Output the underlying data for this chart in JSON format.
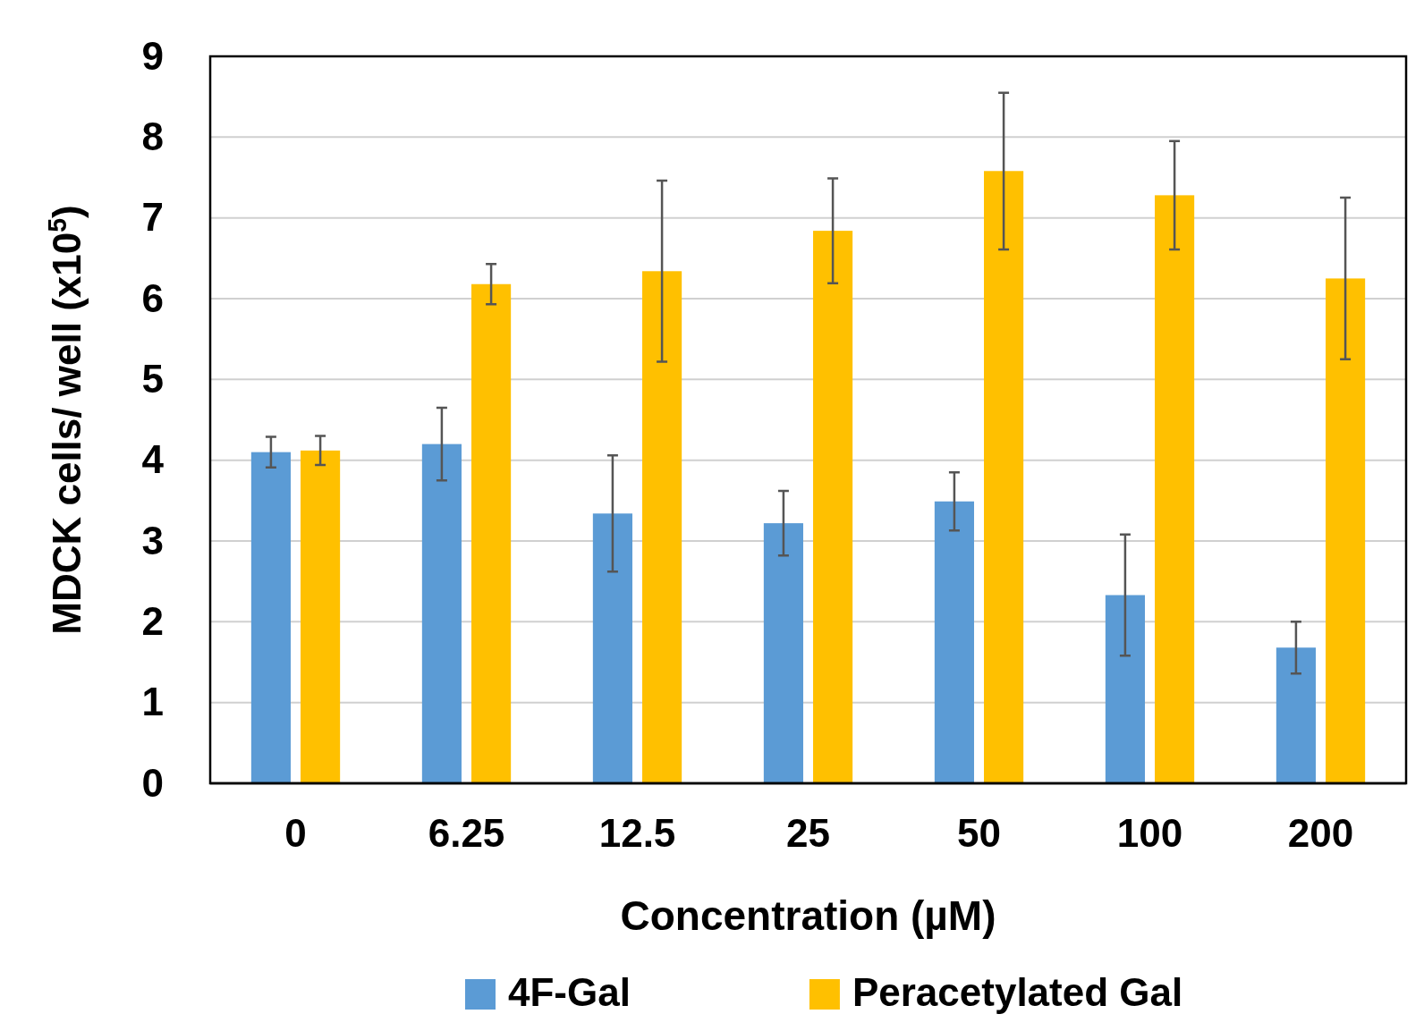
{
  "chart_data": {
    "type": "bar",
    "xlabel": "Concentration (µM)",
    "ylabel": "MDCK cells/ well (x10$^{5}$)",
    "categories": [
      "0",
      "6.25",
      "12.5",
      "25",
      "50",
      "100",
      "200"
    ],
    "series": [
      {
        "name": "4F-Gal",
        "color": "#5b9bd5",
        "values": [
          4.1,
          4.2,
          3.34,
          3.22,
          3.49,
          2.33,
          1.68
        ],
        "errors": [
          0.19,
          0.45,
          0.72,
          0.4,
          0.36,
          0.75,
          0.32
        ]
      },
      {
        "name": "Peracetylated Gal",
        "color": "#ffc000",
        "values": [
          4.12,
          6.18,
          6.34,
          6.84,
          7.58,
          7.28,
          6.25
        ],
        "errors": [
          0.18,
          0.25,
          1.12,
          0.65,
          0.97,
          0.67,
          1.0
        ]
      }
    ],
    "ylim": [
      0,
      9
    ],
    "yticks": [
      0,
      1,
      2,
      3,
      4,
      5,
      6,
      7,
      8,
      9
    ],
    "grid": "y",
    "legend": "bottom"
  }
}
